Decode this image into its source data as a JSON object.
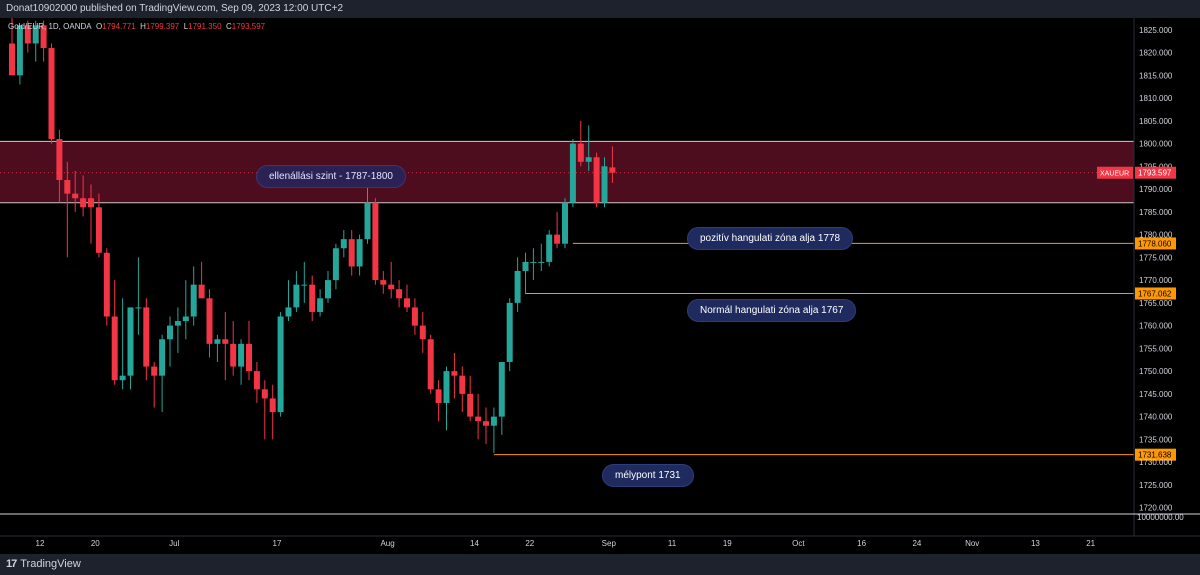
{
  "header": {
    "published": "Donat10902000 published on TradingView.com, Sep 09, 2023 12:00 UTC+2"
  },
  "legend": {
    "symbol": "Gold/EUR, 1D, OANDA",
    "open_label": "O",
    "open": "1794.771",
    "high_label": "H",
    "high": "1799.397",
    "low_label": "L",
    "low": "1791.350",
    "close_label": "C",
    "close": "1793.597"
  },
  "footer": {
    "brand": "TradingView"
  },
  "colors": {
    "up": "#26a69a",
    "down": "#f23645",
    "zone": "#5c0f24",
    "level": "#ff9800",
    "badge_bg": "#1f2b5e"
  },
  "annotations": {
    "resistance": "ellenállási szint - 1787-1800",
    "positive": "pozitív hangulati zóna alja 1778",
    "normal": "Normál hangulati zóna alja 1767",
    "low": "mélypont 1731"
  },
  "chart_data": {
    "type": "candlestick",
    "symbol": "XAUEUR",
    "ylim": [
      1718,
      1827
    ],
    "y_ticks": [
      "1825.000",
      "1820.000",
      "1815.000",
      "1810.000",
      "1805.000",
      "1800.000",
      "1795.000",
      "1790.000",
      "1785.000",
      "1780.000",
      "1775.000",
      "1770.000",
      "1765.000",
      "1760.000",
      "1755.000",
      "1750.000",
      "1745.000",
      "1740.000",
      "1735.000",
      "1730.000",
      "1725.000",
      "1720.000"
    ],
    "y_tick_values": [
      1825,
      1820,
      1815,
      1810,
      1805,
      1800,
      1795,
      1790,
      1785,
      1780,
      1775,
      1770,
      1765,
      1760,
      1755,
      1750,
      1745,
      1740,
      1735,
      1730,
      1725,
      1720
    ],
    "x_ticks": [
      "12",
      "20",
      "Jul",
      "17",
      "Aug",
      "14",
      "22",
      "Sep",
      "11",
      "19",
      "Oct",
      "16",
      "24",
      "Nov",
      "13",
      "21"
    ],
    "x_tick_index": [
      0,
      7,
      17,
      30,
      44,
      55,
      62,
      72,
      80,
      87,
      96,
      104,
      111,
      118,
      126,
      133
    ],
    "volume_label": "10000000.00",
    "resistance_zone": [
      1787,
      1800.5
    ],
    "levels": [
      {
        "price": 1778.06,
        "label": "1778.060",
        "from_index": 71
      },
      {
        "price": 1767.062,
        "label": "1767.062",
        "from_index": 65
      },
      {
        "price": 1731.638,
        "label": "1731.638",
        "from_index": 61
      }
    ],
    "last_price": {
      "label": "XAUEUR",
      "value": "1793.597"
    },
    "candles": [
      {
        "o": 1822,
        "h": 1828,
        "l": 1815,
        "c": 1815
      },
      {
        "o": 1815,
        "h": 1826,
        "l": 1813,
        "c": 1826
      },
      {
        "o": 1826,
        "h": 1827,
        "l": 1820,
        "c": 1822
      },
      {
        "o": 1822,
        "h": 1827,
        "l": 1818,
        "c": 1826
      },
      {
        "o": 1826,
        "h": 1827,
        "l": 1818,
        "c": 1821
      },
      {
        "o": 1821,
        "h": 1822,
        "l": 1800,
        "c": 1801
      },
      {
        "o": 1801,
        "h": 1803,
        "l": 1787,
        "c": 1792
      },
      {
        "o": 1792,
        "h": 1796,
        "l": 1775,
        "c": 1789
      },
      {
        "o": 1789,
        "h": 1794,
        "l": 1785,
        "c": 1788
      },
      {
        "o": 1788,
        "h": 1793,
        "l": 1784,
        "c": 1786
      },
      {
        "o": 1788,
        "h": 1791,
        "l": 1778,
        "c": 1786
      },
      {
        "o": 1786,
        "h": 1789,
        "l": 1775,
        "c": 1776
      },
      {
        "o": 1776,
        "h": 1777,
        "l": 1760,
        "c": 1762
      },
      {
        "o": 1762,
        "h": 1770,
        "l": 1747,
        "c": 1748
      },
      {
        "o": 1748,
        "h": 1766,
        "l": 1746,
        "c": 1749
      },
      {
        "o": 1749,
        "h": 1764,
        "l": 1746,
        "c": 1764
      },
      {
        "o": 1764,
        "h": 1775,
        "l": 1758,
        "c": 1764
      },
      {
        "o": 1764,
        "h": 1766,
        "l": 1748,
        "c": 1751
      },
      {
        "o": 1751,
        "h": 1752,
        "l": 1742,
        "c": 1749
      },
      {
        "o": 1749,
        "h": 1758,
        "l": 1741,
        "c": 1757
      },
      {
        "o": 1757,
        "h": 1762,
        "l": 1751,
        "c": 1760
      },
      {
        "o": 1760,
        "h": 1764,
        "l": 1754,
        "c": 1761
      },
      {
        "o": 1761,
        "h": 1770,
        "l": 1757,
        "c": 1762
      },
      {
        "o": 1762,
        "h": 1773,
        "l": 1760,
        "c": 1769
      },
      {
        "o": 1769,
        "h": 1774,
        "l": 1766,
        "c": 1766
      },
      {
        "o": 1766,
        "h": 1768,
        "l": 1753,
        "c": 1756
      },
      {
        "o": 1756,
        "h": 1758,
        "l": 1752,
        "c": 1757
      },
      {
        "o": 1757,
        "h": 1763,
        "l": 1748,
        "c": 1756
      },
      {
        "o": 1756,
        "h": 1761,
        "l": 1749,
        "c": 1751
      },
      {
        "o": 1751,
        "h": 1757,
        "l": 1747,
        "c": 1756
      },
      {
        "o": 1756,
        "h": 1761,
        "l": 1748,
        "c": 1750
      },
      {
        "o": 1750,
        "h": 1752,
        "l": 1743,
        "c": 1746
      },
      {
        "o": 1746,
        "h": 1748,
        "l": 1735,
        "c": 1744
      },
      {
        "o": 1744,
        "h": 1747,
        "l": 1735,
        "c": 1741
      },
      {
        "o": 1741,
        "h": 1763,
        "l": 1740,
        "c": 1762
      },
      {
        "o": 1762,
        "h": 1770,
        "l": 1761,
        "c": 1764
      },
      {
        "o": 1764,
        "h": 1772,
        "l": 1763,
        "c": 1769
      },
      {
        "o": 1769,
        "h": 1774,
        "l": 1765,
        "c": 1769
      },
      {
        "o": 1769,
        "h": 1771,
        "l": 1761,
        "c": 1763
      },
      {
        "o": 1763,
        "h": 1768,
        "l": 1762,
        "c": 1766
      },
      {
        "o": 1766,
        "h": 1772,
        "l": 1765,
        "c": 1770
      },
      {
        "o": 1770,
        "h": 1778,
        "l": 1768,
        "c": 1777
      },
      {
        "o": 1777,
        "h": 1781,
        "l": 1775,
        "c": 1779
      },
      {
        "o": 1779,
        "h": 1781,
        "l": 1771,
        "c": 1773
      },
      {
        "o": 1773,
        "h": 1780,
        "l": 1771,
        "c": 1779
      },
      {
        "o": 1779,
        "h": 1792,
        "l": 1778,
        "c": 1787
      },
      {
        "o": 1787,
        "h": 1788,
        "l": 1769,
        "c": 1770
      },
      {
        "o": 1770,
        "h": 1772,
        "l": 1767,
        "c": 1769
      },
      {
        "o": 1769,
        "h": 1774,
        "l": 1766,
        "c": 1768
      },
      {
        "o": 1768,
        "h": 1770,
        "l": 1764,
        "c": 1766
      },
      {
        "o": 1766,
        "h": 1769,
        "l": 1763,
        "c": 1764
      },
      {
        "o": 1764,
        "h": 1766,
        "l": 1758,
        "c": 1760
      },
      {
        "o": 1760,
        "h": 1763,
        "l": 1754,
        "c": 1757
      },
      {
        "o": 1757,
        "h": 1758,
        "l": 1745,
        "c": 1746
      },
      {
        "o": 1746,
        "h": 1748,
        "l": 1739,
        "c": 1743
      },
      {
        "o": 1743,
        "h": 1751,
        "l": 1737,
        "c": 1750
      },
      {
        "o": 1750,
        "h": 1754,
        "l": 1744,
        "c": 1749
      },
      {
        "o": 1749,
        "h": 1751,
        "l": 1741,
        "c": 1745
      },
      {
        "o": 1745,
        "h": 1749,
        "l": 1739,
        "c": 1740
      },
      {
        "o": 1740,
        "h": 1745,
        "l": 1735,
        "c": 1739
      },
      {
        "o": 1739,
        "h": 1742,
        "l": 1734,
        "c": 1738
      },
      {
        "o": 1738,
        "h": 1742,
        "l": 1732,
        "c": 1740
      },
      {
        "o": 1740,
        "h": 1752,
        "l": 1736,
        "c": 1752
      },
      {
        "o": 1752,
        "h": 1766,
        "l": 1750,
        "c": 1765
      },
      {
        "o": 1765,
        "h": 1775,
        "l": 1763,
        "c": 1772
      },
      {
        "o": 1772,
        "h": 1776,
        "l": 1767,
        "c": 1774
      },
      {
        "o": 1774,
        "h": 1777,
        "l": 1770,
        "c": 1774
      },
      {
        "o": 1774,
        "h": 1778,
        "l": 1772,
        "c": 1774
      },
      {
        "o": 1774,
        "h": 1781,
        "l": 1773,
        "c": 1780
      },
      {
        "o": 1780,
        "h": 1785,
        "l": 1777,
        "c": 1778
      },
      {
        "o": 1778,
        "h": 1788,
        "l": 1777,
        "c": 1787
      },
      {
        "o": 1787,
        "h": 1801,
        "l": 1786,
        "c": 1800
      },
      {
        "o": 1800,
        "h": 1805,
        "l": 1795,
        "c": 1796
      },
      {
        "o": 1796,
        "h": 1804,
        "l": 1794,
        "c": 1797
      },
      {
        "o": 1797,
        "h": 1798,
        "l": 1786,
        "c": 1787
      },
      {
        "o": 1787,
        "h": 1797,
        "l": 1786,
        "c": 1795
      },
      {
        "o": 1794.771,
        "h": 1799.397,
        "l": 1791.35,
        "c": 1793.597
      }
    ]
  }
}
